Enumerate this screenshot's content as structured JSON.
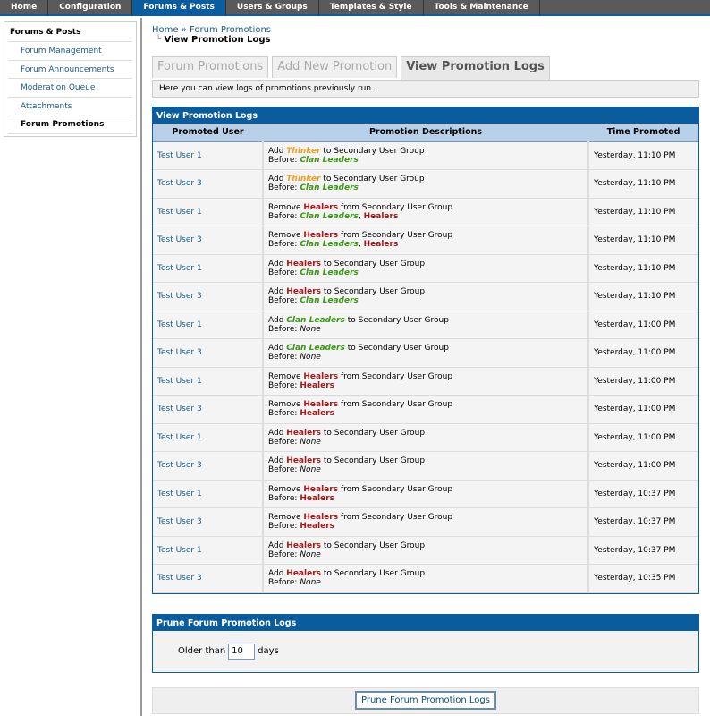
{
  "topnav": [
    "Home",
    "Configuration",
    "Forums & Posts",
    "Users & Groups",
    "Templates & Style",
    "Tools & Maintenance"
  ],
  "topnav_active": 2,
  "sidebar": {
    "title": "Forums & Posts",
    "items": [
      "Forum Management",
      "Forum Announcements",
      "Moderation Queue",
      "Attachments",
      "Forum Promotions"
    ],
    "active": 4
  },
  "breadcrumb": {
    "home": "Home",
    "sep": "»",
    "parent": "Forum Promotions",
    "current": "View Promotion Logs"
  },
  "tabs": [
    "Forum Promotions",
    "Add New Promotion",
    "View Promotion Logs"
  ],
  "tabs_active": 2,
  "intro": "Here you can view logs of promotions previously run.",
  "logs": {
    "title": "View Promotion Logs",
    "columns": [
      "Promoted User",
      "Promotion Descriptions",
      "Time Promoted"
    ],
    "before_label": "Before:",
    "none_label": "None",
    "rows": [
      {
        "user": "Test User 1",
        "action": "Add",
        "group": "Thinker",
        "prep": "to Secondary User Group",
        "before": [
          "Clan Leaders"
        ],
        "time": "Yesterday, 11:10 PM"
      },
      {
        "user": "Test User 3",
        "action": "Add",
        "group": "Thinker",
        "prep": "to Secondary User Group",
        "before": [
          "Clan Leaders"
        ],
        "time": "Yesterday, 11:10 PM"
      },
      {
        "user": "Test User 1",
        "action": "Remove",
        "group": "Healers",
        "prep": "from Secondary User Group",
        "before": [
          "Clan Leaders",
          "Healers"
        ],
        "time": "Yesterday, 11:10 PM"
      },
      {
        "user": "Test User 3",
        "action": "Remove",
        "group": "Healers",
        "prep": "from Secondary User Group",
        "before": [
          "Clan Leaders",
          "Healers"
        ],
        "time": "Yesterday, 11:10 PM"
      },
      {
        "user": "Test User 1",
        "action": "Add",
        "group": "Healers",
        "prep": "to Secondary User Group",
        "before": [
          "Clan Leaders"
        ],
        "time": "Yesterday, 11:10 PM"
      },
      {
        "user": "Test User 3",
        "action": "Add",
        "group": "Healers",
        "prep": "to Secondary User Group",
        "before": [
          "Clan Leaders"
        ],
        "time": "Yesterday, 11:10 PM"
      },
      {
        "user": "Test User 1",
        "action": "Add",
        "group": "Clan Leaders",
        "prep": "to Secondary User Group",
        "before": [],
        "time": "Yesterday, 11:00 PM"
      },
      {
        "user": "Test User 3",
        "action": "Add",
        "group": "Clan Leaders",
        "prep": "to Secondary User Group",
        "before": [],
        "time": "Yesterday, 11:00 PM"
      },
      {
        "user": "Test User 1",
        "action": "Remove",
        "group": "Healers",
        "prep": "from Secondary User Group",
        "before": [
          "Healers"
        ],
        "time": "Yesterday, 11:00 PM"
      },
      {
        "user": "Test User 3",
        "action": "Remove",
        "group": "Healers",
        "prep": "from Secondary User Group",
        "before": [
          "Healers"
        ],
        "time": "Yesterday, 11:00 PM"
      },
      {
        "user": "Test User 1",
        "action": "Add",
        "group": "Healers",
        "prep": "to Secondary User Group",
        "before": [],
        "time": "Yesterday, 11:00 PM"
      },
      {
        "user": "Test User 3",
        "action": "Add",
        "group": "Healers",
        "prep": "to Secondary User Group",
        "before": [],
        "time": "Yesterday, 11:00 PM"
      },
      {
        "user": "Test User 1",
        "action": "Remove",
        "group": "Healers",
        "prep": "from Secondary User Group",
        "before": [
          "Healers"
        ],
        "time": "Yesterday, 10:37 PM"
      },
      {
        "user": "Test User 3",
        "action": "Remove",
        "group": "Healers",
        "prep": "from Secondary User Group",
        "before": [
          "Healers"
        ],
        "time": "Yesterday, 10:37 PM"
      },
      {
        "user": "Test User 1",
        "action": "Add",
        "group": "Healers",
        "prep": "to Secondary User Group",
        "before": [],
        "time": "Yesterday, 10:37 PM"
      },
      {
        "user": "Test User 3",
        "action": "Add",
        "group": "Healers",
        "prep": "to Secondary User Group",
        "before": [],
        "time": "Yesterday, 10:35 PM"
      }
    ]
  },
  "group_colors": {
    "Thinker": "#f0a020",
    "Clan Leaders": "#3a9a10",
    "Healers": "#a81818"
  },
  "prune": {
    "title": "Prune Forum Promotion Logs",
    "older_than": "Older than",
    "value": "10",
    "days": "days",
    "button": "Prune Forum Promotion Logs"
  }
}
